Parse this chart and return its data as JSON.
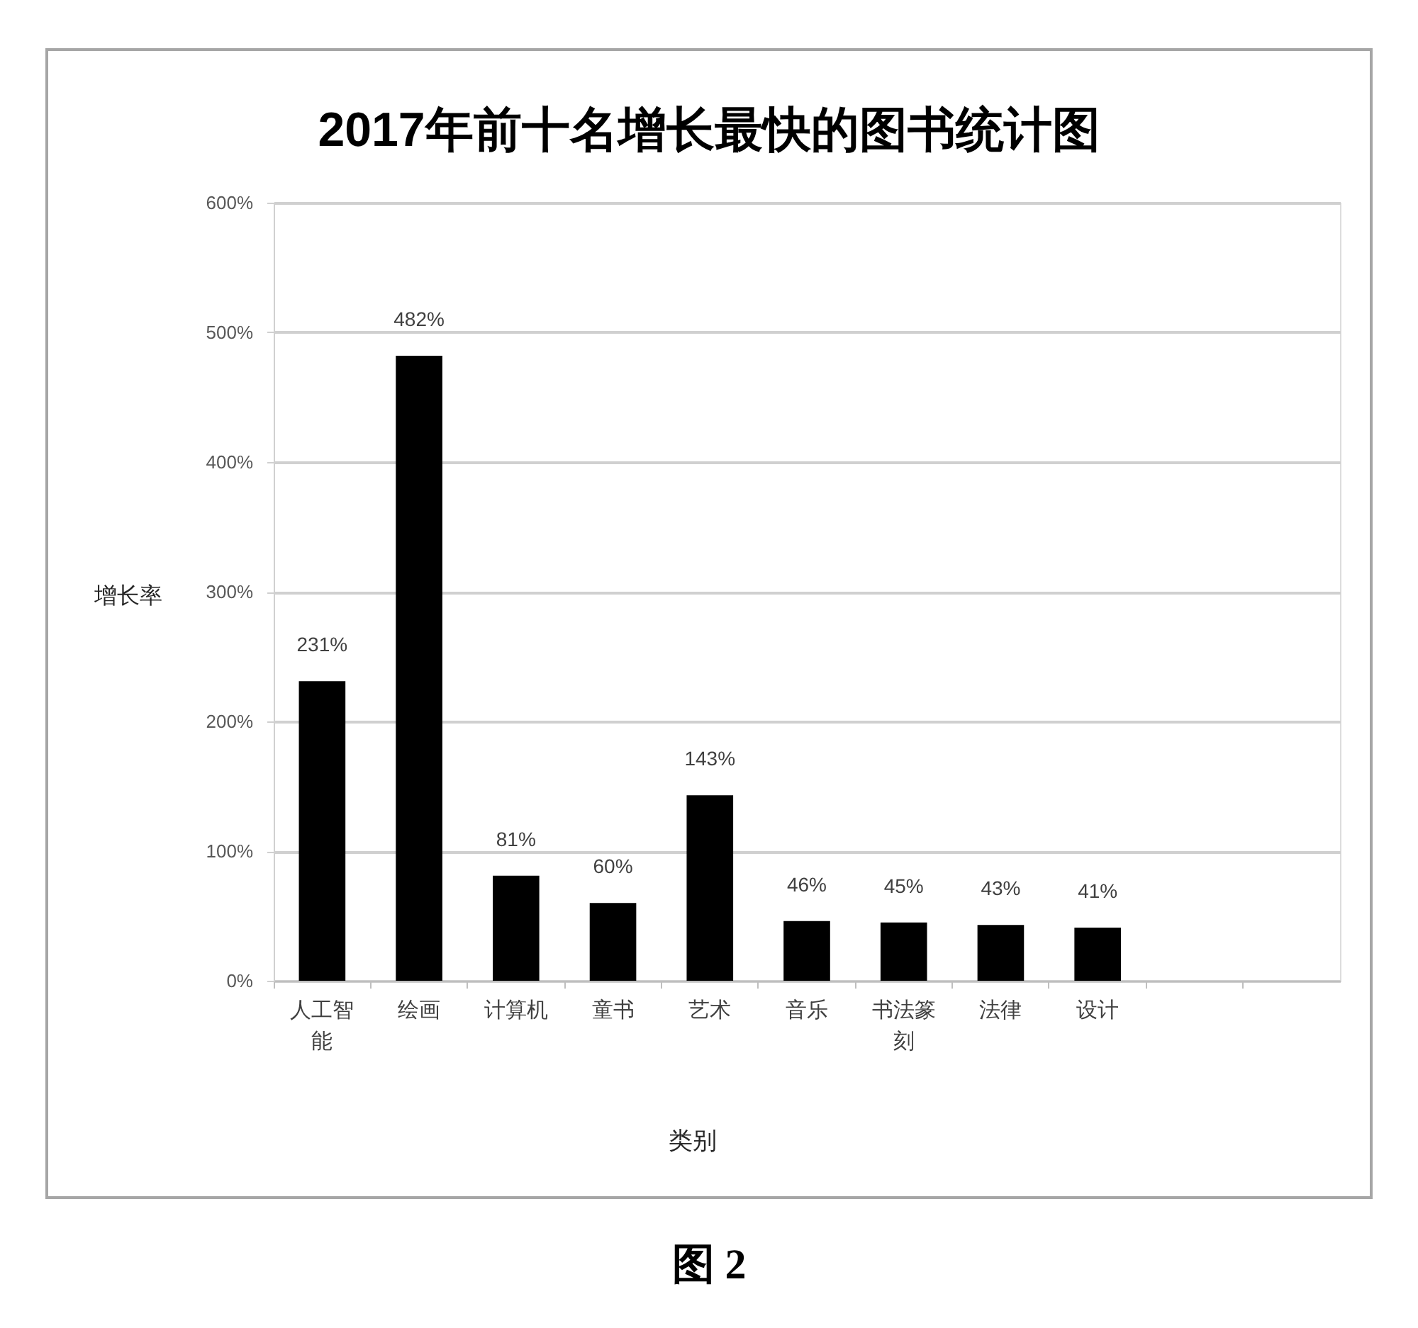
{
  "chart_data": {
    "type": "bar",
    "title": "2017年前十名增长最快的图书统计图",
    "xlabel": "类别",
    "ylabel": "增长率",
    "categories": [
      "人工智能",
      "绘画",
      "计算机",
      "童书",
      "艺术",
      "音乐",
      "书法篆刻",
      "法律",
      "设计",
      null,
      null
    ],
    "values": [
      231,
      482,
      81,
      60,
      143,
      46,
      45,
      43,
      41,
      null,
      null
    ],
    "color": "#000000",
    "value_labels": [
      "231%",
      "482%",
      "81%",
      "60%",
      "143%",
      "46%",
      "45%",
      "43%",
      "41%",
      null,
      null
    ],
    "ylim": [
      0,
      600
    ],
    "yticks": [
      {
        "value": 0,
        "label": "0%"
      },
      {
        "value": 100,
        "label": "100%"
      },
      {
        "value": 200,
        "label": "200%"
      },
      {
        "value": 300,
        "label": "300%"
      },
      {
        "value": 400,
        "label": "400%"
      },
      {
        "value": 500,
        "label": "500%"
      },
      {
        "value": 600,
        "label": "600%"
      }
    ],
    "grid": "y",
    "annotations": [
      "图 2"
    ]
  }
}
